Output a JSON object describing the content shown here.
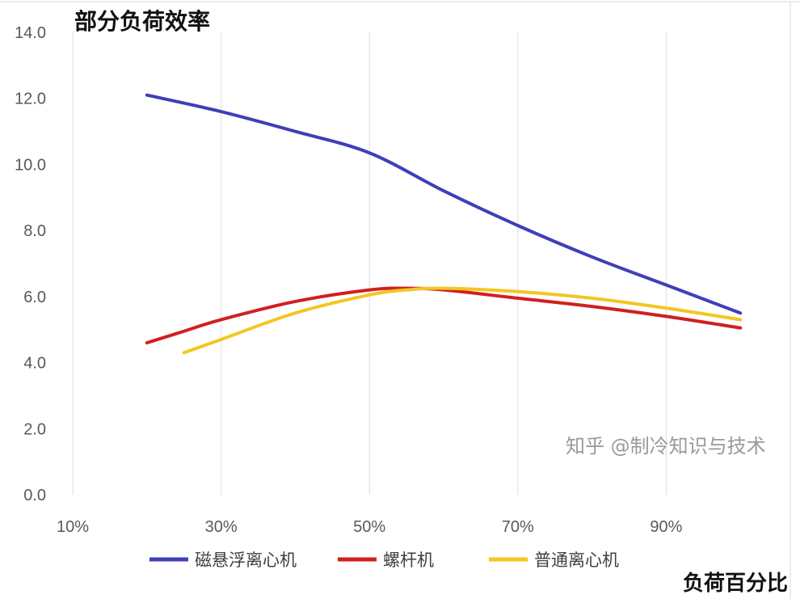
{
  "chart_data": {
    "type": "line",
    "title": "部分负荷效率",
    "xlabel": "负荷百分比",
    "ylabel": "",
    "xlim": [
      10,
      108
    ],
    "ylim": [
      0,
      14
    ],
    "xticks": [
      "10%",
      "30%",
      "50%",
      "70%",
      "90%"
    ],
    "xtick_values": [
      10,
      30,
      50,
      70,
      90
    ],
    "yticks": [
      "0.0",
      "2.0",
      "4.0",
      "6.0",
      "8.0",
      "10.0",
      "12.0",
      "14.0"
    ],
    "ytick_values": [
      0,
      2,
      4,
      6,
      8,
      10,
      12,
      14
    ],
    "grid": "vertical",
    "legend_position": "bottom",
    "series": [
      {
        "name": "磁悬浮离心机",
        "color": "#3f3fb8",
        "x": [
          20,
          30,
          40,
          50,
          60,
          70,
          80,
          90,
          100
        ],
        "values": [
          12.1,
          11.6,
          11.0,
          10.35,
          9.2,
          8.15,
          7.2,
          6.35,
          5.5
        ]
      },
      {
        "name": "螺杆机",
        "color": "#d21f1f",
        "x": [
          20,
          25,
          30,
          40,
          50,
          55,
          60,
          70,
          80,
          90,
          100
        ],
        "values": [
          4.6,
          4.95,
          5.3,
          5.85,
          6.2,
          6.25,
          6.2,
          5.95,
          5.7,
          5.4,
          5.05
        ]
      },
      {
        "name": "普通离心机",
        "color": "#f2c623",
        "x": [
          25,
          30,
          40,
          50,
          55,
          60,
          70,
          80,
          90,
          100
        ],
        "values": [
          4.3,
          4.7,
          5.5,
          6.05,
          6.2,
          6.25,
          6.15,
          5.95,
          5.65,
          5.3
        ]
      }
    ]
  },
  "watermark": "知乎 @制冷知识与技术"
}
